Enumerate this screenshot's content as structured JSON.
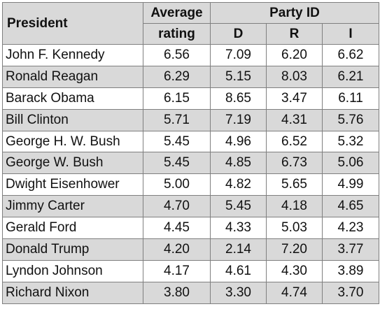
{
  "header": {
    "president": "President",
    "avg_line1": "Average",
    "avg_line2": "rating",
    "party": "Party ID",
    "d": "D",
    "r": "R",
    "i": "I"
  },
  "rows": [
    {
      "name": "John F. Kennedy",
      "avg": "6.56",
      "d": "7.09",
      "r": "6.20",
      "i": "6.62"
    },
    {
      "name": "Ronald Reagan",
      "avg": "6.29",
      "d": "5.15",
      "r": "8.03",
      "i": "6.21"
    },
    {
      "name": "Barack Obama",
      "avg": "6.15",
      "d": "8.65",
      "r": "3.47",
      "i": "6.11"
    },
    {
      "name": "Bill Clinton",
      "avg": "5.71",
      "d": "7.19",
      "r": "4.31",
      "i": "5.76"
    },
    {
      "name": "George H. W. Bush",
      "avg": "5.45",
      "d": "4.96",
      "r": "6.52",
      "i": "5.32"
    },
    {
      "name": "George W. Bush",
      "avg": "5.45",
      "d": "4.85",
      "r": "6.73",
      "i": "5.06"
    },
    {
      "name": "Dwight Eisenhower",
      "avg": "5.00",
      "d": "4.82",
      "r": "5.65",
      "i": "4.99"
    },
    {
      "name": "Jimmy Carter",
      "avg": "4.70",
      "d": "5.45",
      "r": "4.18",
      "i": "4.65"
    },
    {
      "name": "Gerald Ford",
      "avg": "4.45",
      "d": "4.33",
      "r": "5.03",
      "i": "4.23"
    },
    {
      "name": "Donald Trump",
      "avg": "4.20",
      "d": "2.14",
      "r": "7.20",
      "i": "3.77"
    },
    {
      "name": "Lyndon Johnson",
      "avg": "4.17",
      "d": "4.61",
      "r": "4.30",
      "i": "3.89"
    },
    {
      "name": "Richard Nixon",
      "avg": "3.80",
      "d": "3.30",
      "r": "4.74",
      "i": "3.70"
    }
  ]
}
